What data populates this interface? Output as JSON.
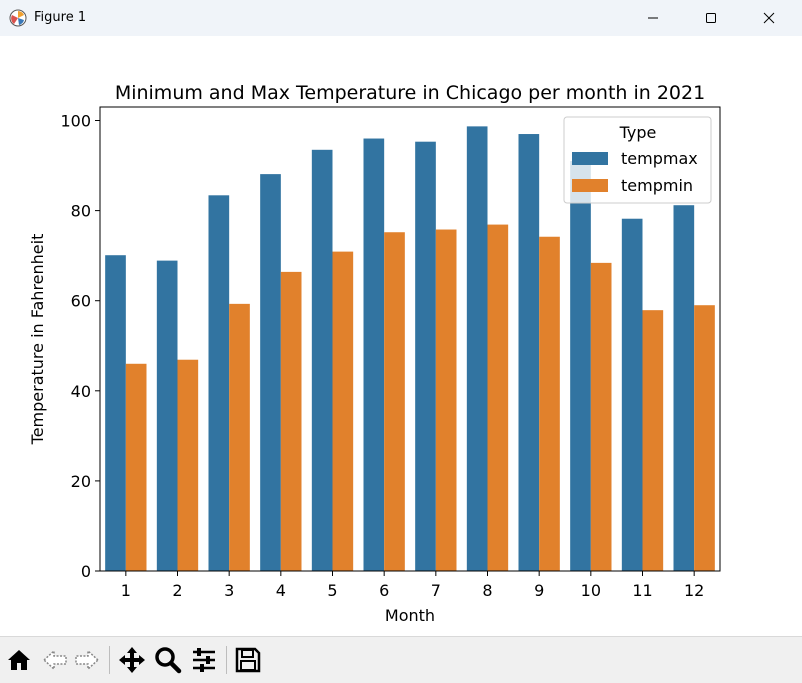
{
  "window": {
    "title": "Figure 1",
    "app_icon": "matplotlib-icon",
    "controls": [
      "minimize-icon",
      "maximize-icon",
      "close-icon"
    ]
  },
  "toolbar": {
    "buttons": [
      "home-icon",
      "back-icon",
      "forward-icon",
      "pan-icon",
      "zoom-icon",
      "configure-subplots-icon",
      "save-icon"
    ]
  },
  "chart_data": {
    "type": "bar",
    "title": "Minimum and Max Temperature in Chicago per month in 2021",
    "xlabel": "Month",
    "ylabel": "Temperature in Fahrenheit",
    "categories": [
      "1",
      "2",
      "3",
      "4",
      "5",
      "6",
      "7",
      "8",
      "9",
      "10",
      "11",
      "12"
    ],
    "ylim": [
      0,
      103
    ],
    "yticks": [
      "0",
      "20",
      "40",
      "60",
      "80",
      "100"
    ],
    "grid": false,
    "legend": {
      "title": "Type",
      "position": "top-right"
    },
    "series": [
      {
        "name": "tempmax",
        "color": "#3274a1",
        "values": [
          70.1,
          68.9,
          83.4,
          88.1,
          93.5,
          96.0,
          95.3,
          98.7,
          97.0,
          91.0,
          78.2,
          81.2
        ]
      },
      {
        "name": "tempmin",
        "color": "#e1812c",
        "values": [
          46.0,
          46.9,
          59.3,
          66.4,
          70.9,
          75.2,
          75.8,
          76.9,
          74.2,
          68.4,
          57.9,
          59.0
        ]
      }
    ]
  }
}
